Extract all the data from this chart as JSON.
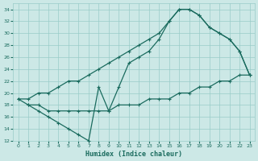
{
  "xlabel": "Humidex (Indice chaleur)",
  "bg_color": "#cce8e6",
  "grid_color": "#99ccc8",
  "line_color": "#1a6b5e",
  "xlim": [
    -0.5,
    23.5
  ],
  "ylim": [
    12,
    35
  ],
  "xticks": [
    0,
    1,
    2,
    3,
    4,
    5,
    6,
    7,
    8,
    9,
    10,
    11,
    12,
    13,
    14,
    15,
    16,
    17,
    18,
    19,
    20,
    21,
    22,
    23
  ],
  "yticks": [
    12,
    14,
    16,
    18,
    20,
    22,
    24,
    26,
    28,
    30,
    32,
    34
  ],
  "curve1_x": [
    0,
    1,
    2,
    3,
    4,
    5,
    6,
    7,
    8,
    9,
    10,
    11,
    12,
    13,
    14,
    15,
    16,
    17,
    18,
    19,
    20,
    21,
    22,
    23
  ],
  "curve1_y": [
    19,
    19,
    20,
    20,
    21,
    22,
    22,
    23,
    24,
    25,
    26,
    27,
    28,
    29,
    30,
    32,
    34,
    34,
    33,
    31,
    30,
    29,
    27,
    23
  ],
  "curve2_x": [
    1,
    2,
    3,
    4,
    5,
    6,
    7,
    8,
    9,
    10,
    11,
    12,
    13,
    14,
    15,
    16,
    17,
    18,
    19,
    20,
    21,
    22,
    23
  ],
  "curve2_y": [
    18,
    17,
    16,
    15,
    14,
    13,
    12,
    21,
    17,
    21,
    25,
    26,
    27,
    29,
    32,
    34,
    34,
    33,
    31,
    30,
    29,
    27,
    23
  ],
  "curve3_x": [
    0,
    1,
    2,
    3,
    4,
    5,
    6,
    7,
    8,
    9,
    10,
    11,
    12,
    13,
    14,
    15,
    16,
    17,
    18,
    19,
    20,
    21,
    22,
    23
  ],
  "curve3_y": [
    19,
    18,
    18,
    17,
    17,
    17,
    17,
    17,
    17,
    17,
    18,
    18,
    18,
    19,
    19,
    19,
    20,
    20,
    21,
    21,
    22,
    22,
    23,
    23
  ]
}
